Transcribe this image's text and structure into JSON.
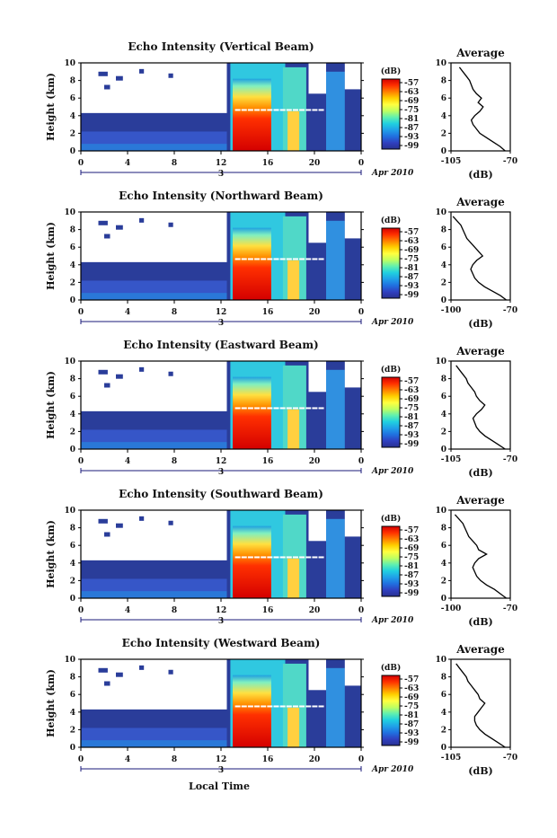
{
  "xlabel": "Local Time",
  "date_label": "Apr 2010",
  "day_marker": "3",
  "colorbar": {
    "unit": "(dB)",
    "ticks": [
      "-57",
      "-63",
      "-69",
      "-75",
      "-81",
      "-87",
      "-93",
      "-99"
    ],
    "colors": [
      "#d40000",
      "#ff3000",
      "#ff8000",
      "#ffd000",
      "#ffff40",
      "#c0ff60",
      "#60f0b0",
      "#20d0e0",
      "#20a0e8",
      "#2070e0",
      "#3040c0",
      "#283090"
    ]
  },
  "chart_data": [
    {
      "type": "heatmap",
      "title": "Echo Intensity (Vertical Beam)",
      "ylabel": "Height (km)",
      "xlabel": "",
      "x_ticks": [
        "0",
        "4",
        "8",
        "12",
        "16",
        "20",
        "0"
      ],
      "y_ticks": [
        "0",
        "2",
        "4",
        "6",
        "8",
        "10"
      ],
      "xlim": [
        0,
        24
      ],
      "ylim": [
        0,
        10
      ],
      "average": {
        "title": "Average",
        "xlabel": "(dB)",
        "x_ticks": [
          "-105",
          "-70"
        ],
        "xlim": [
          -105,
          -70
        ],
        "y_ticks": [
          "0",
          "2",
          "4",
          "6",
          "8",
          "10"
        ],
        "height_km": [
          0,
          0.5,
          1,
          1.5,
          2,
          2.5,
          3,
          3.5,
          4,
          4.5,
          5,
          5.5,
          6,
          6.5,
          7,
          7.5,
          8,
          8.5,
          9,
          9.5
        ],
        "db": [
          -73,
          -76,
          -80,
          -84,
          -88,
          -90,
          -92,
          -93,
          -91,
          -88,
          -86,
          -89,
          -87,
          -90,
          -92,
          -93,
          -94,
          -96,
          -98,
          -100
        ]
      }
    },
    {
      "type": "heatmap",
      "title": "Echo Intensity (Northward Beam)",
      "ylabel": "Height (km)",
      "xlabel": "",
      "x_ticks": [
        "0",
        "4",
        "8",
        "12",
        "16",
        "20",
        "0"
      ],
      "y_ticks": [
        "0",
        "2",
        "4",
        "6",
        "8",
        "10"
      ],
      "xlim": [
        0,
        24
      ],
      "ylim": [
        0,
        10
      ],
      "average": {
        "title": "Average",
        "xlabel": "(dB)",
        "x_ticks": [
          "-100",
          "-70"
        ],
        "xlim": [
          -100,
          -70
        ],
        "y_ticks": [
          "0",
          "2",
          "4",
          "6",
          "8",
          "10"
        ],
        "height_km": [
          0,
          0.5,
          1,
          1.5,
          2,
          2.5,
          3,
          3.5,
          4,
          4.5,
          5,
          5.5,
          6,
          6.5,
          7,
          7.5,
          8,
          8.5,
          9,
          9.5
        ],
        "db": [
          -72,
          -75,
          -79,
          -83,
          -86,
          -88,
          -89,
          -90,
          -89,
          -87,
          -84,
          -86,
          -88,
          -90,
          -92,
          -93,
          -94,
          -95,
          -97,
          -99
        ]
      }
    },
    {
      "type": "heatmap",
      "title": "Echo Intensity (Eastward Beam)",
      "ylabel": "Height (km)",
      "xlabel": "",
      "x_ticks": [
        "0",
        "4",
        "8",
        "12",
        "16",
        "20",
        "0"
      ],
      "y_ticks": [
        "0",
        "2",
        "4",
        "6",
        "8",
        "10"
      ],
      "xlim": [
        0,
        24
      ],
      "ylim": [
        0,
        10
      ],
      "average": {
        "title": "Average",
        "xlabel": "(dB)",
        "x_ticks": [
          "-105",
          "-70"
        ],
        "xlim": [
          -105,
          -70
        ],
        "y_ticks": [
          "0",
          "2",
          "4",
          "6",
          "8",
          "10"
        ],
        "height_km": [
          0,
          0.5,
          1,
          1.5,
          2,
          2.5,
          3,
          3.5,
          4,
          4.5,
          5,
          5.5,
          6,
          6.5,
          7,
          7.5,
          8,
          8.5,
          9,
          9.5
        ],
        "db": [
          -73,
          -77,
          -81,
          -85,
          -88,
          -90,
          -91,
          -92,
          -90,
          -87,
          -85,
          -88,
          -90,
          -91,
          -93,
          -95,
          -96,
          -98,
          -100,
          -102
        ]
      }
    },
    {
      "type": "heatmap",
      "title": "Echo Intensity (Southward Beam)",
      "ylabel": "Height (km)",
      "xlabel": "",
      "x_ticks": [
        "0",
        "4",
        "8",
        "12",
        "16",
        "20",
        "0"
      ],
      "y_ticks": [
        "0",
        "2",
        "4",
        "6",
        "8",
        "10"
      ],
      "xlim": [
        0,
        24
      ],
      "ylim": [
        0,
        10
      ],
      "average": {
        "title": "Average",
        "xlabel": "(dB)",
        "x_ticks": [
          "-100",
          "-70"
        ],
        "xlim": [
          -100,
          -70
        ],
        "y_ticks": [
          "0",
          "2",
          "4",
          "6",
          "8",
          "10"
        ],
        "height_km": [
          0,
          0.5,
          1,
          1.5,
          2,
          2.5,
          3,
          3.5,
          4,
          4.5,
          5,
          5.5,
          6,
          6.5,
          7,
          7.5,
          8,
          8.5,
          9,
          9.5
        ],
        "db": [
          -72,
          -75,
          -78,
          -82,
          -85,
          -87,
          -88,
          -89,
          -88,
          -86,
          -82,
          -86,
          -87,
          -89,
          -91,
          -92,
          -93,
          -94,
          -96,
          -98
        ]
      }
    },
    {
      "type": "heatmap",
      "title": "Echo Intensity (Westward Beam)",
      "ylabel": "Height (km)",
      "xlabel": "Local Time",
      "x_ticks": [
        "0",
        "4",
        "8",
        "12",
        "16",
        "20",
        "0"
      ],
      "y_ticks": [
        "0",
        "2",
        "4",
        "6",
        "8",
        "10"
      ],
      "xlim": [
        0,
        24
      ],
      "ylim": [
        0,
        10
      ],
      "average": {
        "title": "Average",
        "xlabel": "(dB)",
        "x_ticks": [
          "-105",
          "-70"
        ],
        "xlim": [
          -105,
          -70
        ],
        "y_ticks": [
          "0",
          "2",
          "4",
          "6",
          "8",
          "10"
        ],
        "height_km": [
          0,
          0.5,
          1,
          1.5,
          2,
          2.5,
          3,
          3.5,
          4,
          4.5,
          5,
          5.5,
          6,
          6.5,
          7,
          7.5,
          8,
          8.5,
          9,
          9.5
        ],
        "db": [
          -73,
          -77,
          -81,
          -85,
          -88,
          -90,
          -91,
          -91,
          -89,
          -87,
          -85,
          -88,
          -89,
          -91,
          -93,
          -95,
          -96,
          -98,
          -100,
          -102
        ]
      }
    }
  ]
}
